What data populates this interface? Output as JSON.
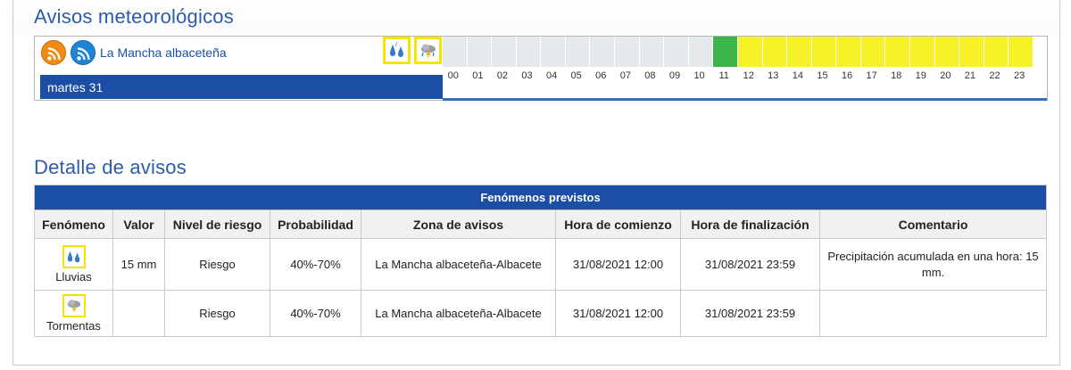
{
  "header": {
    "title": "Avisos meteorológicos"
  },
  "timeline": {
    "zone": "La Mancha albaceteña",
    "date": "martes 31",
    "icons": [
      "rain-icon",
      "storm-icon"
    ],
    "hours": [
      "00",
      "01",
      "02",
      "03",
      "04",
      "05",
      "06",
      "07",
      "08",
      "09",
      "10",
      "11",
      "12",
      "13",
      "14",
      "15",
      "16",
      "17",
      "18",
      "19",
      "20",
      "21",
      "22",
      "23"
    ],
    "levels": [
      "none",
      "none",
      "none",
      "none",
      "none",
      "none",
      "none",
      "none",
      "none",
      "none",
      "none",
      "green",
      "yellow",
      "yellow",
      "yellow",
      "yellow",
      "yellow",
      "yellow",
      "yellow",
      "yellow",
      "yellow",
      "yellow",
      "yellow",
      "yellow"
    ],
    "colors": {
      "none": "#e5e8ed",
      "green": "#3cb44a",
      "yellow": "#f7f12a"
    }
  },
  "detail": {
    "title": "Detalle de avisos",
    "caption": "Fenómenos previstos",
    "columns": [
      "Fenómeno",
      "Valor",
      "Nivel de riesgo",
      "Probabilidad",
      "Zona de avisos",
      "Hora de comienzo",
      "Hora de finalización",
      "Comentario"
    ],
    "rows": [
      {
        "icon": "rain-icon",
        "phenomenon": "Lluvias",
        "value": "15 mm",
        "risk": "Riesgo",
        "probability": "40%-70%",
        "zone": "La Mancha albaceteña-Albacete",
        "start": "31/08/2021 12:00",
        "end": "31/08/2021 23:59",
        "comment": "Precipitación acumulada en una hora: 15 mm."
      },
      {
        "icon": "storm-icon",
        "phenomenon": "Tormentas",
        "value": "",
        "risk": "Riesgo",
        "probability": "40%-70%",
        "zone": "La Mancha albaceteña-Albacete",
        "start": "31/08/2021 12:00",
        "end": "31/08/2021 23:59",
        "comment": ""
      }
    ]
  }
}
